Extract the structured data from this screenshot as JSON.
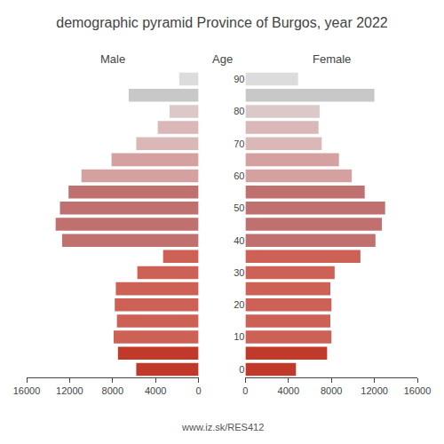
{
  "chart_data": {
    "type": "bar",
    "orientation": "horizontal",
    "title": "demographic pyramid Province of Burgos, year 2022",
    "ylabel": "Age",
    "annotations": [
      "www.iz.sk/RES412"
    ],
    "categories": [
      "0",
      null,
      "10",
      null,
      "20",
      null,
      "30",
      null,
      "40",
      null,
      "50",
      null,
      "60",
      null,
      "70",
      null,
      "80",
      null,
      "90"
    ],
    "series": [
      {
        "name": "Male",
        "values": [
          5800,
          7500,
          7900,
          7600,
          7800,
          7700,
          5700,
          3300,
          12700,
          13300,
          12900,
          12100,
          10900,
          8100,
          5800,
          3800,
          2700,
          6500,
          1800
        ],
        "colors": [
          "#c0392b",
          "#c0392b",
          "#cd6155",
          "#cd6155",
          "#cd6155",
          "#cd6155",
          "#cd6155",
          "#cd6155",
          "#c17070",
          "#c17070",
          "#c17070",
          "#c17070",
          "#d4a0a0",
          "#d4a0a0",
          "#dab8b8",
          "#dab8b8",
          "#dcc8c8",
          "#c8c8c8",
          "#dcdcdc"
        ]
      },
      {
        "name": "Female",
        "values": [
          4700,
          7600,
          8000,
          7900,
          8000,
          7900,
          8300,
          10700,
          12100,
          12700,
          13000,
          11100,
          9900,
          8700,
          7100,
          6800,
          6900,
          12000,
          4900
        ],
        "colors": [
          "#c0392b",
          "#c0392b",
          "#cd6155",
          "#cd6155",
          "#cd6155",
          "#cd6155",
          "#cd6155",
          "#cd6155",
          "#c17070",
          "#c17070",
          "#c17070",
          "#c17070",
          "#d4a0a0",
          "#d4a0a0",
          "#dab8b8",
          "#dab8b8",
          "#dcc8c8",
          "#c8c8c8",
          "#dcdcdc"
        ]
      }
    ],
    "xlim": [
      0,
      16000
    ],
    "xticks": [
      0,
      4000,
      8000,
      12000,
      16000
    ],
    "grid": false
  }
}
